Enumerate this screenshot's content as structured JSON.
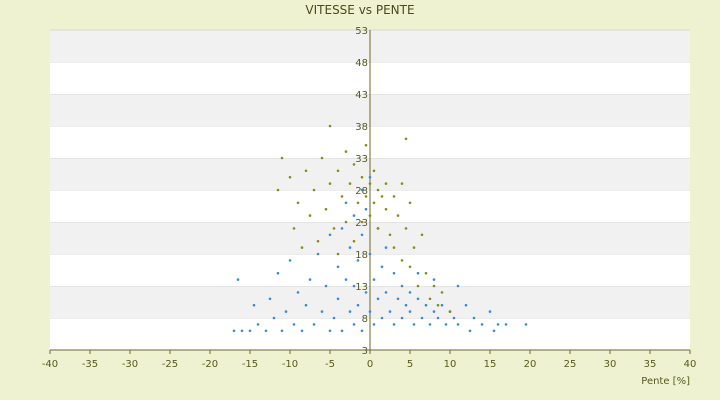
{
  "chart_data": {
    "type": "scatter",
    "title": "VITESSE vs PENTE",
    "xlabel": "Pente [%]",
    "ylabel": "",
    "xlim": [
      -40,
      40
    ],
    "ylim": [
      3,
      53
    ],
    "x_ticks": [
      -40,
      -35,
      -30,
      -25,
      -20,
      -15,
      -10,
      -5,
      0,
      5,
      10,
      15,
      20,
      25,
      30,
      35,
      40
    ],
    "y_ticks": [
      3,
      8,
      13,
      18,
      23,
      28,
      33,
      38,
      43,
      48,
      53
    ],
    "x_tick_labels": [
      "-40",
      "-35",
      "-30",
      "-25",
      "-20",
      "-15",
      "-10",
      "-5",
      "0",
      "5",
      "10",
      "15",
      "20",
      "25",
      "30",
      "35",
      "40"
    ],
    "y_tick_labels": [
      "3",
      "8",
      "13",
      "18",
      "23",
      "28",
      "33",
      "38",
      "43",
      "48",
      "53"
    ],
    "grid": "horizontal alternating bands",
    "legend": "none",
    "series": [
      {
        "color": "#3a8ad4",
        "points": [
          [
            -17,
            6
          ],
          [
            -16,
            6
          ],
          [
            -16.5,
            14
          ],
          [
            -15,
            6
          ],
          [
            -14.5,
            10
          ],
          [
            -14,
            7
          ],
          [
            -13,
            6
          ],
          [
            -12.5,
            11
          ],
          [
            -12,
            8
          ],
          [
            -11.5,
            15
          ],
          [
            -11,
            6
          ],
          [
            -10.5,
            9
          ],
          [
            -10,
            17
          ],
          [
            -9.5,
            7
          ],
          [
            -9,
            12
          ],
          [
            -8.5,
            6
          ],
          [
            -8,
            10
          ],
          [
            -7.5,
            14
          ],
          [
            -7,
            7
          ],
          [
            -6.5,
            18
          ],
          [
            -6,
            9
          ],
          [
            -5.5,
            13
          ],
          [
            -5,
            6
          ],
          [
            -5,
            21
          ],
          [
            -4.5,
            8
          ],
          [
            -4,
            16
          ],
          [
            -4,
            11
          ],
          [
            -3.5,
            22
          ],
          [
            -3.5,
            6
          ],
          [
            -3,
            14
          ],
          [
            -3,
            26
          ],
          [
            -2.5,
            9
          ],
          [
            -2.5,
            19
          ],
          [
            -2,
            7
          ],
          [
            -2,
            24
          ],
          [
            -2,
            13
          ],
          [
            -1.5,
            17
          ],
          [
            -1.5,
            10
          ],
          [
            -1,
            28
          ],
          [
            -1,
            6
          ],
          [
            -1,
            21
          ],
          [
            -0.5,
            12
          ],
          [
            -0.5,
            25
          ],
          [
            0,
            9
          ],
          [
            0,
            18
          ],
          [
            0,
            30
          ],
          [
            0.5,
            14
          ],
          [
            0.5,
            7
          ],
          [
            1,
            22
          ],
          [
            1,
            11
          ],
          [
            1.5,
            16
          ],
          [
            1.5,
            8
          ],
          [
            2,
            19
          ],
          [
            2,
            12
          ],
          [
            2.5,
            9
          ],
          [
            3,
            15
          ],
          [
            3,
            7
          ],
          [
            3.5,
            11
          ],
          [
            4,
            13
          ],
          [
            4,
            8
          ],
          [
            4.5,
            10
          ],
          [
            5,
            9
          ],
          [
            5,
            12
          ],
          [
            5.5,
            7
          ],
          [
            6,
            11
          ],
          [
            6.5,
            8
          ],
          [
            7,
            10
          ],
          [
            7.5,
            7
          ],
          [
            8,
            9
          ],
          [
            8.5,
            8
          ],
          [
            9,
            10
          ],
          [
            9.5,
            7
          ],
          [
            10,
            9
          ],
          [
            10.5,
            8
          ],
          [
            11,
            7
          ],
          [
            12,
            10
          ],
          [
            12.5,
            6
          ],
          [
            13,
            8
          ],
          [
            14,
            7
          ],
          [
            15,
            9
          ],
          [
            15.5,
            6
          ],
          [
            16,
            7
          ],
          [
            17,
            7
          ],
          [
            19.5,
            7
          ],
          [
            11,
            13
          ],
          [
            8,
            14
          ],
          [
            6,
            15
          ]
        ]
      },
      {
        "color": "#8a8a1a",
        "points": [
          [
            -11,
            33
          ],
          [
            -11.5,
            28
          ],
          [
            -10,
            30
          ],
          [
            -9.5,
            22
          ],
          [
            -9,
            26
          ],
          [
            -8.5,
            19
          ],
          [
            -8,
            31
          ],
          [
            -7.5,
            24
          ],
          [
            -7,
            28
          ],
          [
            -6.5,
            20
          ],
          [
            -6,
            33
          ],
          [
            -5.5,
            25
          ],
          [
            -5,
            29
          ],
          [
            -5,
            38
          ],
          [
            -4.5,
            22
          ],
          [
            -4,
            31
          ],
          [
            -4,
            18
          ],
          [
            -3.5,
            27
          ],
          [
            -3,
            34
          ],
          [
            -3,
            23
          ],
          [
            -2.5,
            29
          ],
          [
            -2,
            20
          ],
          [
            -2,
            32
          ],
          [
            -1.5,
            26
          ],
          [
            -1,
            30
          ],
          [
            -1,
            23
          ],
          [
            -0.5,
            35
          ],
          [
            -0.5,
            27
          ],
          [
            0,
            29
          ],
          [
            0,
            24
          ],
          [
            0.5,
            31
          ],
          [
            0.5,
            26
          ],
          [
            1,
            28
          ],
          [
            1,
            22
          ],
          [
            1.5,
            27
          ],
          [
            2,
            25
          ],
          [
            2,
            29
          ],
          [
            2.5,
            21
          ],
          [
            3,
            27
          ],
          [
            3,
            19
          ],
          [
            3.5,
            24
          ],
          [
            4,
            17
          ],
          [
            4,
            29
          ],
          [
            4.5,
            22
          ],
          [
            4.5,
            36
          ],
          [
            5,
            16
          ],
          [
            5,
            26
          ],
          [
            5.5,
            19
          ],
          [
            6,
            13
          ],
          [
            6.5,
            21
          ],
          [
            7,
            15
          ],
          [
            7.5,
            11
          ],
          [
            8,
            13
          ],
          [
            8.5,
            10
          ],
          [
            9,
            12
          ],
          [
            10,
            9
          ]
        ]
      }
    ]
  }
}
